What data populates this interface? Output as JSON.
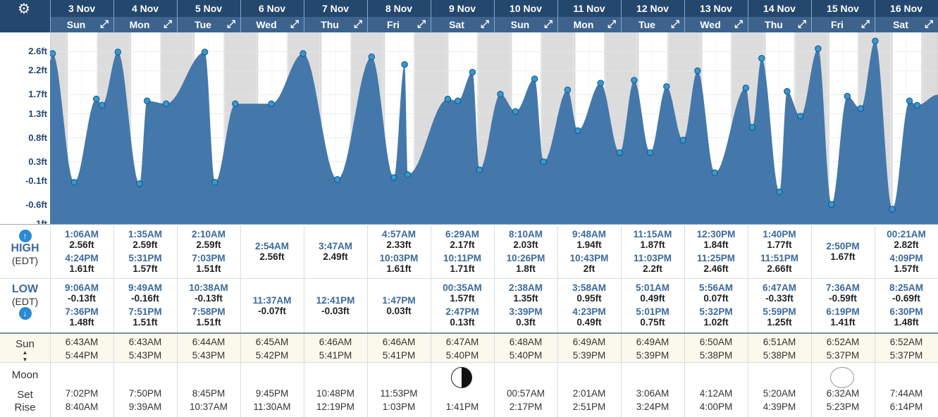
{
  "header": {
    "gear_icon": "gear-icon",
    "days": [
      {
        "date": "3 Nov",
        "day": "Sun"
      },
      {
        "date": "4 Nov",
        "day": "Mon"
      },
      {
        "date": "5 Nov",
        "day": "Tue"
      },
      {
        "date": "6 Nov",
        "day": "Wed"
      },
      {
        "date": "7 Nov",
        "day": "Thu"
      },
      {
        "date": "8 Nov",
        "day": "Fri"
      },
      {
        "date": "9 Nov",
        "day": "Sat"
      },
      {
        "date": "10 Nov",
        "day": "Sun"
      },
      {
        "date": "11 Nov",
        "day": "Mon"
      },
      {
        "date": "12 Nov",
        "day": "Tue"
      },
      {
        "date": "13 Nov",
        "day": "Wed"
      },
      {
        "date": "14 Nov",
        "day": "Thu"
      },
      {
        "date": "15 Nov",
        "day": "Fri"
      },
      {
        "date": "16 Nov",
        "day": "Sat"
      }
    ]
  },
  "chart_data": {
    "type": "area",
    "title": "",
    "xlabel": "",
    "ylabel": "",
    "y_ticks": [
      "2.6ft",
      "2.2ft",
      "1.7ft",
      "1.3ft",
      "0.8ft",
      "0.3ft",
      "-0.1ft",
      "-0.6ft",
      "-1ft"
    ],
    "ylim": [
      -1.0,
      3.0
    ],
    "x_range_days": [
      0,
      14
    ],
    "series": [
      {
        "values_x_day": [
          0.04,
          0.38,
          0.73,
          0.82,
          1.07,
          1.41,
          1.53,
          1.83,
          2.44,
          2.6,
          2.92,
          3.49,
          3.99,
          4.53,
          5.07,
          5.42,
          5.59,
          5.64,
          6.27,
          6.43,
          6.66,
          6.77,
          7.1,
          7.34,
          7.64,
          7.78,
          8.16,
          8.32,
          8.68,
          8.98,
          9.21,
          9.46,
          9.72,
          9.98,
          10.21,
          10.48,
          10.97,
          11.07,
          11.22,
          11.5,
          11.62,
          11.83,
          12.11,
          12.32,
          12.57,
          12.78,
          13.01,
          13.28,
          13.55,
          13.67
        ],
        "values_ft": [
          2.56,
          -0.13,
          1.61,
          1.48,
          2.59,
          -0.16,
          1.57,
          1.51,
          2.59,
          -0.13,
          1.51,
          1.51,
          2.56,
          -0.07,
          2.49,
          -0.03,
          2.33,
          0.03,
          1.61,
          1.57,
          2.17,
          0.13,
          1.71,
          1.35,
          2.03,
          0.3,
          1.8,
          0.95,
          1.94,
          0.49,
          2.0,
          0.49,
          1.87,
          0.75,
          2.2,
          0.07,
          1.84,
          1.02,
          2.46,
          -0.33,
          1.77,
          1.25,
          2.66,
          -0.59,
          1.67,
          1.41,
          2.82,
          -0.69,
          1.57,
          1.48
        ]
      }
    ],
    "colors": {
      "fill": "#4578aa",
      "night": "#dcdcdc",
      "day": "#ffffff",
      "dot": "#2e9ad6"
    }
  },
  "tides": {
    "high_label": "HIGH",
    "low_label": "LOW",
    "tz": "(EDT)",
    "up_icon": "arrow-up-icon",
    "down_icon": "arrow-down-icon",
    "days": [
      {
        "high": [
          [
            "1:06AM",
            "2.56ft"
          ],
          [
            "4:24PM",
            "1.61ft"
          ]
        ],
        "low": [
          [
            "9:06AM",
            "-0.13ft"
          ],
          [
            "7:36PM",
            "1.48ft"
          ]
        ]
      },
      {
        "high": [
          [
            "1:35AM",
            "2.59ft"
          ],
          [
            "5:31PM",
            "1.57ft"
          ]
        ],
        "low": [
          [
            "9:49AM",
            "-0.16ft"
          ],
          [
            "7:51PM",
            "1.51ft"
          ]
        ]
      },
      {
        "high": [
          [
            "2:10AM",
            "2.59ft"
          ],
          [
            "7:03PM",
            "1.51ft"
          ]
        ],
        "low": [
          [
            "10:38AM",
            "-0.13ft"
          ],
          [
            "7:58PM",
            "1.51ft"
          ]
        ]
      },
      {
        "high": [
          [
            "2:54AM",
            "2.56ft"
          ]
        ],
        "low": [
          [
            "11:37AM",
            "-0.07ft"
          ]
        ]
      },
      {
        "high": [
          [
            "3:47AM",
            "2.49ft"
          ]
        ],
        "low": [
          [
            "12:41PM",
            "-0.03ft"
          ]
        ]
      },
      {
        "high": [
          [
            "4:57AM",
            "2.33ft"
          ],
          [
            "10:03PM",
            "1.61ft"
          ]
        ],
        "low": [
          [
            "1:47PM",
            "0.03ft"
          ]
        ]
      },
      {
        "high": [
          [
            "6:29AM",
            "2.17ft"
          ],
          [
            "10:11PM",
            "1.71ft"
          ]
        ],
        "low": [
          [
            "00:35AM",
            "1.57ft"
          ],
          [
            "2:47PM",
            "0.13ft"
          ]
        ]
      },
      {
        "high": [
          [
            "8:10AM",
            "2.03ft"
          ],
          [
            "10:26PM",
            "1.8ft"
          ]
        ],
        "low": [
          [
            "2:38AM",
            "1.35ft"
          ],
          [
            "3:39PM",
            "0.3ft"
          ]
        ]
      },
      {
        "high": [
          [
            "9:48AM",
            "1.94ft"
          ],
          [
            "10:43PM",
            "2ft"
          ]
        ],
        "low": [
          [
            "3:58AM",
            "0.95ft"
          ],
          [
            "4:23PM",
            "0.49ft"
          ]
        ]
      },
      {
        "high": [
          [
            "11:15AM",
            "1.87ft"
          ],
          [
            "11:03PM",
            "2.2ft"
          ]
        ],
        "low": [
          [
            "5:01AM",
            "0.49ft"
          ],
          [
            "5:01PM",
            "0.75ft"
          ]
        ]
      },
      {
        "high": [
          [
            "12:30PM",
            "1.84ft"
          ],
          [
            "11:25PM",
            "2.46ft"
          ]
        ],
        "low": [
          [
            "5:56AM",
            "0.07ft"
          ],
          [
            "5:32PM",
            "1.02ft"
          ]
        ]
      },
      {
        "high": [
          [
            "1:40PM",
            "1.77ft"
          ],
          [
            "11:51PM",
            "2.66ft"
          ]
        ],
        "low": [
          [
            "6:47AM",
            "-0.33ft"
          ],
          [
            "5:59PM",
            "1.25ft"
          ]
        ]
      },
      {
        "high": [
          [
            "2:50PM",
            "1.67ft"
          ]
        ],
        "low": [
          [
            "7:36AM",
            "-0.59ft"
          ],
          [
            "6:19PM",
            "1.41ft"
          ]
        ]
      },
      {
        "high": [
          [
            "00:21AM",
            "2.82ft"
          ],
          [
            "4:09PM",
            "1.57ft"
          ]
        ],
        "low": [
          [
            "8:25AM",
            "-0.69ft"
          ],
          [
            "6:30PM",
            "1.48ft"
          ]
        ]
      }
    ]
  },
  "sun": {
    "label": "Sun",
    "sun_icon": "sun-up-down-icon",
    "days": [
      [
        "6:43AM",
        "5:44PM"
      ],
      [
        "6:43AM",
        "5:43PM"
      ],
      [
        "6:44AM",
        "5:43PM"
      ],
      [
        "6:45AM",
        "5:42PM"
      ],
      [
        "6:46AM",
        "5:41PM"
      ],
      [
        "6:46AM",
        "5:41PM"
      ],
      [
        "6:47AM",
        "5:40PM"
      ],
      [
        "6:48AM",
        "5:40PM"
      ],
      [
        "6:49AM",
        "5:39PM"
      ],
      [
        "6:49AM",
        "5:39PM"
      ],
      [
        "6:50AM",
        "5:38PM"
      ],
      [
        "6:51AM",
        "5:38PM"
      ],
      [
        "6:52AM",
        "5:37PM"
      ],
      [
        "6:52AM",
        "5:37PM"
      ]
    ]
  },
  "moon": {
    "label": "Moon",
    "set_label": "Set",
    "rise_label": "Rise",
    "days": [
      {
        "set": "7:02PM",
        "rise": "8:40AM",
        "phase": ""
      },
      {
        "set": "7:50PM",
        "rise": "9:39AM",
        "phase": ""
      },
      {
        "set": "8:45PM",
        "rise": "10:37AM",
        "phase": ""
      },
      {
        "set": "9:45PM",
        "rise": "11:30AM",
        "phase": ""
      },
      {
        "set": "10:48PM",
        "rise": "12:19PM",
        "phase": ""
      },
      {
        "set": "11:53PM",
        "rise": "1:03PM",
        "phase": ""
      },
      {
        "set": "",
        "rise": "1:41PM",
        "phase": "first-quarter-moon-icon"
      },
      {
        "set": "00:57AM",
        "rise": "2:17PM",
        "phase": ""
      },
      {
        "set": "2:01AM",
        "rise": "2:51PM",
        "phase": ""
      },
      {
        "set": "3:06AM",
        "rise": "3:24PM",
        "phase": ""
      },
      {
        "set": "4:12AM",
        "rise": "4:00PM",
        "phase": ""
      },
      {
        "set": "5:20AM",
        "rise": "4:39PM",
        "phase": ""
      },
      {
        "set": "6:32AM",
        "rise": "5:23PM",
        "phase": "full-moon-icon"
      },
      {
        "set": "7:44AM",
        "rise": "6:14PM",
        "phase": ""
      }
    ]
  }
}
